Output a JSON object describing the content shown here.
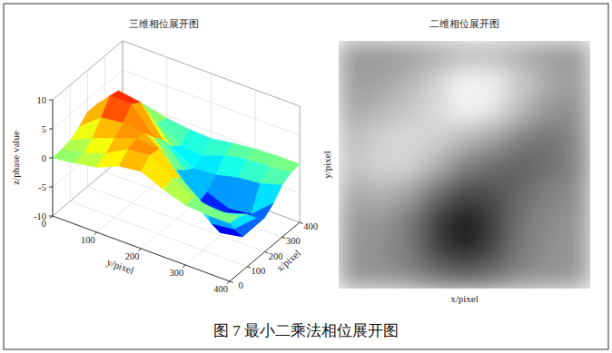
{
  "chart_data": [
    {
      "type": "surface",
      "title": "三维相位展开图",
      "x_label": "x/pixel",
      "y_label": "y/pixel",
      "z_label": "z/phase value",
      "x": [
        0,
        50,
        100,
        150,
        200,
        250,
        300,
        350,
        400
      ],
      "y": [
        0,
        50,
        100,
        150,
        200,
        250,
        300,
        350,
        400
      ],
      "cells": [
        [
          0.0,
          0.2,
          0.5,
          1.5,
          2.8,
          2.8,
          1.6,
          0.6,
          0.2
        ],
        [
          0.5,
          1.0,
          2.2,
          4.5,
          7.0,
          6.6,
          4.0,
          1.5,
          0.4
        ],
        [
          1.2,
          2.3,
          3.6,
          5.0,
          7.0,
          6.0,
          2.7,
          0.0,
          -0.5
        ],
        [
          2.8,
          4.4,
          5.0,
          4.6,
          2.6,
          0.9,
          -1.5,
          -2.5,
          -1.0
        ],
        [
          3.3,
          4.8,
          4.6,
          2.0,
          -1.5,
          -2.9,
          -3.8,
          -2.9,
          -1.2
        ],
        [
          1.6,
          2.2,
          1.0,
          -3.2,
          -5.8,
          -5.2,
          -3.5,
          -1.5,
          -0.6
        ],
        [
          0.3,
          0.2,
          -2.0,
          -6.7,
          -9.5,
          -6.7,
          -2.6,
          -0.7,
          -0.2
        ],
        [
          0.0,
          -0.5,
          -2.2,
          -6.2,
          -8.8,
          -6.2,
          -2.2,
          -0.5,
          0.0
        ],
        [
          0.0,
          -0.2,
          -1.0,
          -2.9,
          -4.1,
          -2.9,
          -1.0,
          -0.2,
          0.0
        ]
      ],
      "xlim": [
        0,
        400
      ],
      "xticks": [
        0,
        100,
        200,
        300,
        400
      ],
      "ylim": [
        0,
        400
      ],
      "yticks": [
        0,
        100,
        200,
        300,
        400
      ],
      "zlim": [
        -10,
        10
      ],
      "zticks": [
        -10,
        -5,
        0,
        5,
        10
      ],
      "grid": true
    },
    {
      "type": "heatmap",
      "title": "二维相位展开图",
      "x_label": "x/pixel",
      "y_label": "y/pixel",
      "x": [
        0,
        50,
        100,
        150,
        200,
        250,
        300,
        350,
        400
      ],
      "y": [
        0,
        50,
        100,
        150,
        200,
        250,
        300,
        350,
        400
      ],
      "cells": [
        [
          0.0,
          0.2,
          0.5,
          1.5,
          2.8,
          2.8,
          1.6,
          0.6,
          0.2
        ],
        [
          0.5,
          1.0,
          2.2,
          4.5,
          7.0,
          6.6,
          4.0,
          1.5,
          0.4
        ],
        [
          1.2,
          2.3,
          3.6,
          5.0,
          7.0,
          6.0,
          2.7,
          0.0,
          -0.5
        ],
        [
          2.8,
          4.4,
          5.0,
          4.6,
          2.6,
          0.9,
          -1.5,
          -2.5,
          -1.0
        ],
        [
          3.3,
          4.8,
          4.6,
          2.0,
          -1.5,
          -2.9,
          -3.8,
          -2.9,
          -1.2
        ],
        [
          1.6,
          2.2,
          1.0,
          -3.2,
          -5.8,
          -5.2,
          -3.5,
          -1.5,
          -0.6
        ],
        [
          0.3,
          0.2,
          -2.0,
          -6.7,
          -9.5,
          -6.7,
          -2.6,
          -0.7,
          -0.2
        ],
        [
          0.0,
          -0.5,
          -2.2,
          -6.2,
          -8.8,
          -6.2,
          -2.2,
          -0.5,
          0.0
        ],
        [
          0.0,
          -0.2,
          -1.0,
          -2.9,
          -4.1,
          -2.9,
          -1.0,
          -0.2,
          0.0
        ]
      ],
      "tick_labels": false
    }
  ],
  "caption": "图 7 最小二乘法相位展开图"
}
